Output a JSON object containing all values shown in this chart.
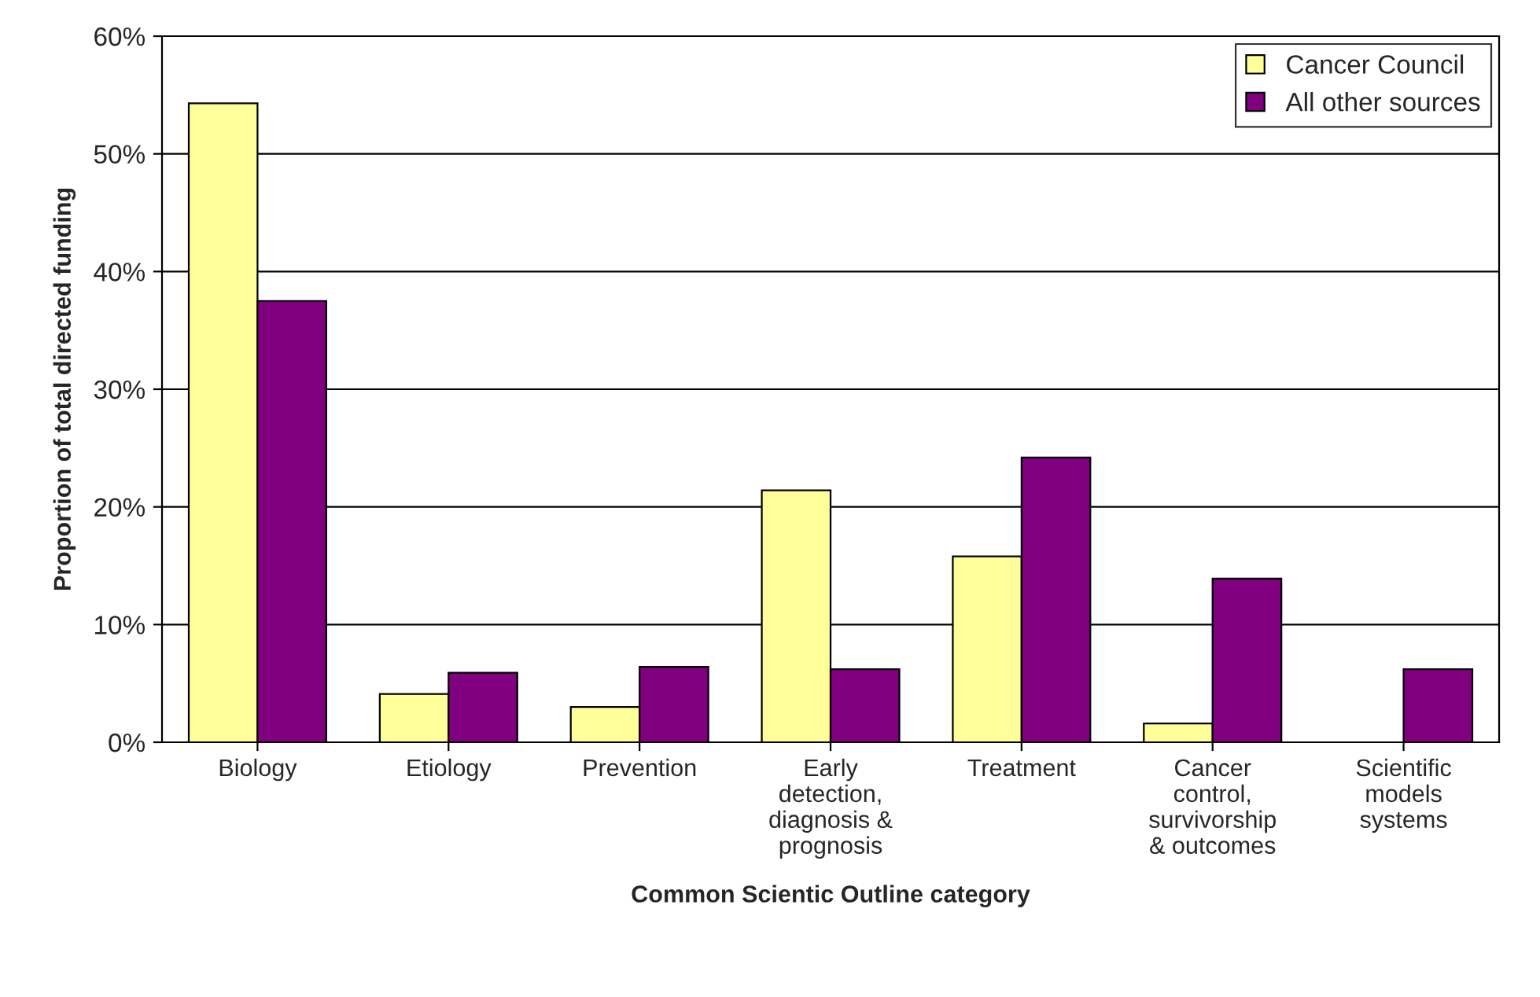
{
  "chart_data": {
    "type": "bar",
    "xlabel": "Common Scientic Outline category",
    "ylabel": "Proportion of total directed funding",
    "categories": [
      "Biology",
      "Etiology",
      "Prevention",
      "Early\ndetection,\ndiagnosis &\nprognosis",
      "Treatment",
      "Cancer\ncontrol,\nsurvivorship\n& outcomes",
      "Scientific\nmodels\nsystems"
    ],
    "series": [
      {
        "name": "Cancer Council",
        "color": "#ffff99",
        "values": [
          54.3,
          4.1,
          3.0,
          21.4,
          15.8,
          1.6,
          null
        ]
      },
      {
        "name": "All other sources",
        "color": "#800080",
        "values": [
          37.5,
          5.9,
          6.4,
          6.2,
          24.2,
          13.9,
          6.2
        ]
      }
    ],
    "ylim": [
      0,
      60
    ],
    "yticks": [
      {
        "value": 0,
        "label": "0%"
      },
      {
        "value": 10,
        "label": "10%"
      },
      {
        "value": 20,
        "label": "20%"
      },
      {
        "value": 30,
        "label": "30%"
      },
      {
        "value": 40,
        "label": "40%"
      },
      {
        "value": 50,
        "label": "50%"
      },
      {
        "value": 60,
        "label": "60%"
      }
    ],
    "grid": "y",
    "legend": "top right"
  }
}
